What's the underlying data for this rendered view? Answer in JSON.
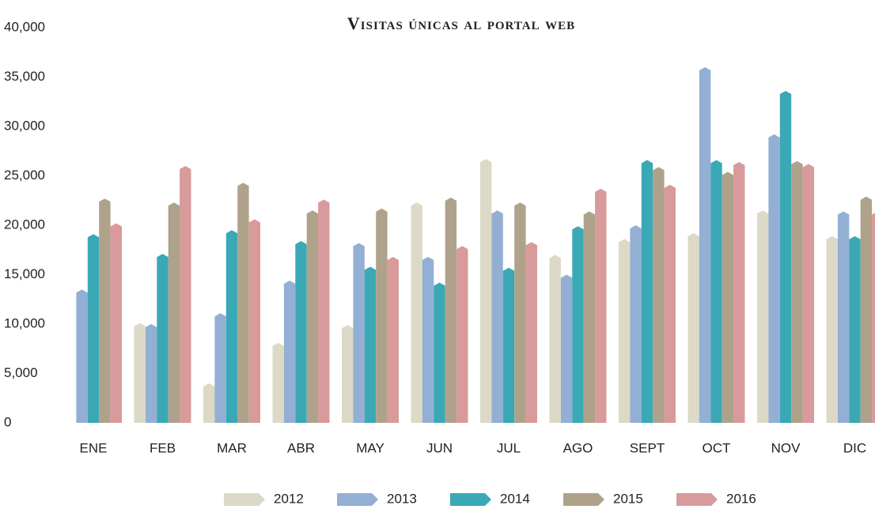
{
  "chart_data": {
    "type": "bar",
    "title": "Visitas únicas al portal web",
    "categories": [
      "ENE",
      "FEB",
      "MAR",
      "ABR",
      "MAY",
      "JUN",
      "JUL",
      "AGO",
      "SEPT",
      "OCT",
      "NOV",
      "DIC"
    ],
    "series": [
      {
        "name": "2012",
        "color": "#dcd9c6",
        "values": [
          null,
          10100,
          4000,
          8100,
          9900,
          22300,
          26700,
          17000,
          18600,
          19200,
          21500,
          18900
        ]
      },
      {
        "name": "2013",
        "color": "#93afd3",
        "values": [
          13500,
          10000,
          11100,
          14400,
          18200,
          16800,
          21500,
          15000,
          20000,
          36000,
          29200,
          21400
        ]
      },
      {
        "name": "2014",
        "color": "#3aa8b5",
        "values": [
          19100,
          17100,
          19500,
          18400,
          15800,
          14200,
          15700,
          19900,
          26600,
          26600,
          33600,
          18900
        ]
      },
      {
        "name": "2015",
        "color": "#aea28a",
        "values": [
          22700,
          22300,
          24300,
          21500,
          21700,
          22800,
          22300,
          21400,
          25900,
          25400,
          26500,
          22900
        ]
      },
      {
        "name": "2016",
        "color": "#d89a9a",
        "values": [
          20200,
          26000,
          20600,
          22600,
          16800,
          17900,
          18300,
          23700,
          24100,
          26400,
          26200,
          21400
        ]
      }
    ],
    "ylim": [
      0,
      40000
    ],
    "yticks": [
      0,
      {
        "value": 5000,
        "label": "5,000"
      },
      {
        "value": 10000,
        "label": "10,000"
      },
      {
        "value": 15000,
        "label": "15,000"
      },
      {
        "value": 20000,
        "label": "20,000"
      },
      {
        "value": 25000,
        "label": "25,000"
      },
      {
        "value": 30000,
        "label": "30,000"
      },
      {
        "value": 35000,
        "label": "35,000"
      },
      {
        "value": 40000,
        "label": "40,000"
      }
    ],
    "grid": false
  }
}
